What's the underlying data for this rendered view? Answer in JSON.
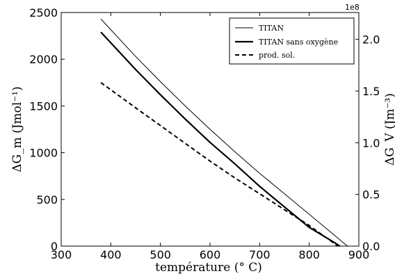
{
  "chart_data": {
    "type": "line",
    "xlabel": "température (° C)",
    "ylabel": "ΔG_m (Jmol⁻¹)",
    "ylabel_right": "ΔG_V (Jm⁻³)",
    "right_axis_multiplier": "1e8",
    "xlim": [
      300,
      900
    ],
    "ylim": [
      0,
      2500
    ],
    "ylim_right": [
      0,
      2.26
    ],
    "x_ticks": [
      "300",
      "400",
      "500",
      "600",
      "700",
      "800",
      "900"
    ],
    "y_ticks": [
      "0",
      "500",
      "1000",
      "1500",
      "2000",
      "2500"
    ],
    "y_right_ticks": [
      "0.0",
      "0.5",
      "1.0",
      "1.5",
      "2.0"
    ],
    "grid": false,
    "legend_position": "top-right",
    "series": [
      {
        "name": "TITAN",
        "style": "thin-solid",
        "x": [
          380,
          450,
          500,
          550,
          600,
          650,
          700,
          750,
          800,
          850,
          877
        ],
        "y": [
          2430,
          2030,
          1760,
          1500,
          1250,
          1010,
          780,
          560,
          340,
          120,
          0
        ]
      },
      {
        "name": "TITAN sans oxygène",
        "style": "thick-solid",
        "x": [
          380,
          450,
          500,
          550,
          600,
          650,
          700,
          750,
          800,
          850,
          862
        ],
        "y": [
          2290,
          1890,
          1620,
          1360,
          1110,
          880,
          640,
          420,
          200,
          40,
          0
        ]
      },
      {
        "name": "prod. sol.",
        "style": "dashed",
        "x": [
          380,
          450,
          500,
          550,
          600,
          650,
          700,
          750,
          800,
          858
        ],
        "y": [
          1750,
          1480,
          1290,
          1100,
          910,
          730,
          560,
          390,
          220,
          0
        ]
      }
    ]
  }
}
